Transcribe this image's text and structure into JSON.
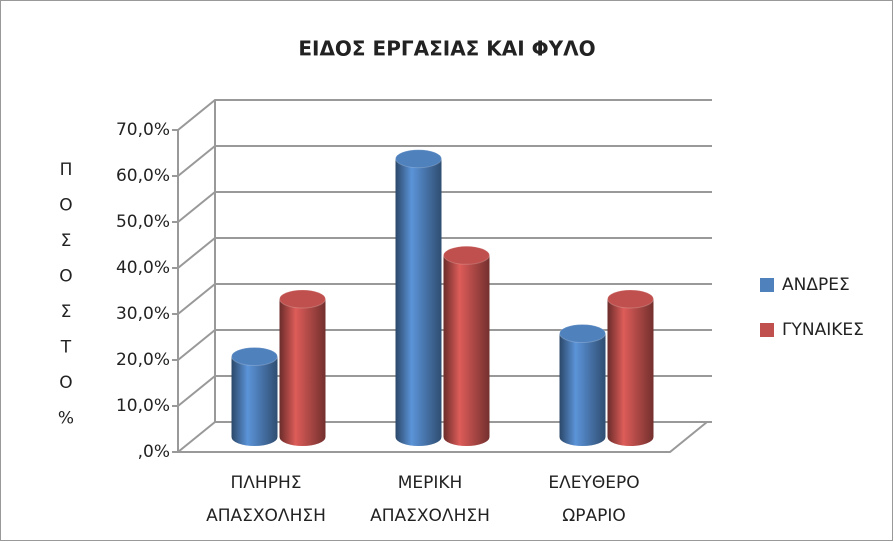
{
  "chart_data": {
    "type": "bar3d",
    "title": "ΕΙΔΟΣ ΕΡΓΑΣΙΑΣ ΚΑΙ ΦΥΛΟ",
    "y_label": "ΠΟΣΟΣΤΟ %",
    "categories": [
      "ΠΛΗΡΗΣ ΑΠΑΣΧΟΛΗΣΗ",
      "ΜΕΡΙΚΗ ΑΠΑΣΧΟΛΗΣΗ",
      "ΕΛΕΥΘΕΡΟ ΩΡΑΡΙΟ"
    ],
    "series": [
      {
        "name": "ΑΝΔΡΕΣ",
        "color": "#4f81bd",
        "values": [
          17.5,
          60.5,
          22.5
        ]
      },
      {
        "name": "ΓΥΝΑΙΚΕΣ",
        "color": "#c0504d",
        "values": [
          30,
          39.5,
          30
        ]
      }
    ],
    "ylim": [
      0,
      70
    ],
    "yticks": [
      {
        "value": 0,
        "label": ",0%"
      },
      {
        "value": 10,
        "label": "10,0%"
      },
      {
        "value": 20,
        "label": "20,0%"
      },
      {
        "value": 30,
        "label": "30,0%"
      },
      {
        "value": 40,
        "label": "40,0%"
      },
      {
        "value": 50,
        "label": "50,0%"
      },
      {
        "value": 60,
        "label": "60,0%"
      },
      {
        "value": 70,
        "label": "70,0%"
      }
    ],
    "grid": true,
    "legend": "right"
  }
}
